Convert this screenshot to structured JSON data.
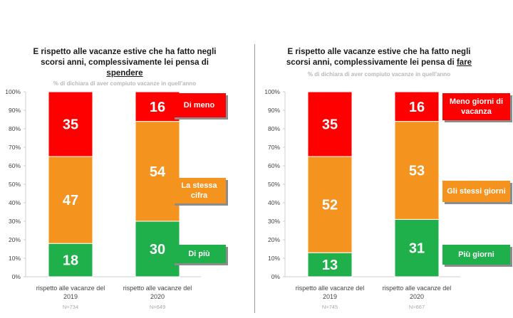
{
  "colors": {
    "red": "#ff0000",
    "orange": "#f5931f",
    "green": "#1fb04b",
    "axis": "#cfcfcf",
    "text": "#444444"
  },
  "chart_data": [
    {
      "type": "bar",
      "stacked": true,
      "title_parts": [
        "E rispetto alle vacanze estive che ha fatto negli",
        "scorsi anni, complessivamente lei pensa di",
        "spendere"
      ],
      "subtitle": "% di dichiara di aver compiuto vacanze in quell'anno",
      "categories": [
        [
          "rispetto alle vacanze del",
          "2019"
        ],
        [
          "rispetto alle vacanze del",
          "2020"
        ]
      ],
      "sample_sizes": [
        "N=734",
        "N=649"
      ],
      "yticks": [
        "0%",
        "10%",
        "20%",
        "30%",
        "40%",
        "50%",
        "60%",
        "70%",
        "80%",
        "90%",
        "100%"
      ],
      "ylim": [
        0,
        100
      ],
      "series": [
        {
          "name": "Di più",
          "color": "#1fb04b",
          "values": [
            18,
            30
          ]
        },
        {
          "name": "La stessa cifra",
          "color": "#f5931f",
          "values": [
            47,
            54
          ]
        },
        {
          "name": "Di meno",
          "color": "#ff0000",
          "values": [
            35,
            16
          ]
        }
      ],
      "legend_labels": [
        "Di meno",
        "La stessa\ncifra",
        "Di più"
      ],
      "legend": "right"
    },
    {
      "type": "bar",
      "stacked": true,
      "title_parts": [
        "E rispetto alle vacanze estive che ha fatto negli",
        "scorsi anni, complessivamente lei pensa di",
        "fare"
      ],
      "subtitle": "% di dichiara di aver compiuto vacanze in quell'anno",
      "categories": [
        [
          "rispetto alle vacanze del",
          "2019"
        ],
        [
          "rispetto alle vacanze del",
          "2020"
        ]
      ],
      "sample_sizes": [
        "N=745",
        "N=667"
      ],
      "yticks": [
        "0%",
        "10%",
        "20%",
        "30%",
        "40%",
        "50%",
        "60%",
        "70%",
        "80%",
        "90%",
        "100%"
      ],
      "ylim": [
        0,
        100
      ],
      "series": [
        {
          "name": "Più giorni",
          "color": "#1fb04b",
          "values": [
            13,
            31
          ]
        },
        {
          "name": "Gli stessi giorni",
          "color": "#f5931f",
          "values": [
            52,
            53
          ]
        },
        {
          "name": "Meno giorni di vacanza",
          "color": "#ff0000",
          "values": [
            35,
            16
          ]
        }
      ],
      "legend_labels": [
        "Meno giorni di\nvacanza",
        "Gli stessi giorni",
        "Più giorni"
      ],
      "legend": "right"
    }
  ]
}
